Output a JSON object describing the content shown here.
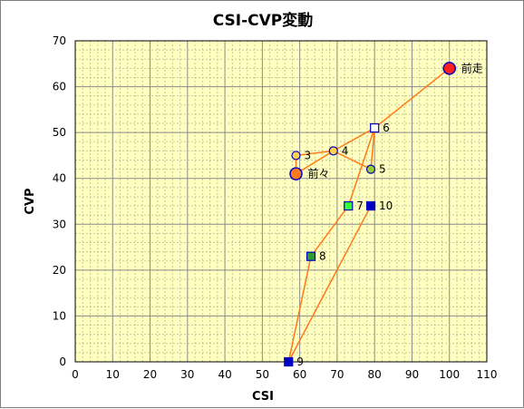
{
  "chart_data": {
    "type": "scatter",
    "title": "CSI-CVP変動",
    "xlabel": "CSI",
    "ylabel": "CVP",
    "xlim": [
      0,
      110
    ],
    "ylim": [
      0,
      70
    ],
    "xticks": [
      "0",
      "10",
      "20",
      "30",
      "40",
      "50",
      "60",
      "70",
      "80",
      "90",
      "100",
      "110"
    ],
    "yticks": [
      "0",
      "10",
      "20",
      "30",
      "40",
      "50",
      "60",
      "70"
    ],
    "grid": true,
    "background_color": "#ffffc0",
    "line_color": "#ff7a1a",
    "points": [
      {
        "label": "前走",
        "x": 100,
        "y": 64,
        "shape": "circle",
        "fill": "#ff2020",
        "stroke": "#0000c0",
        "size": "large"
      },
      {
        "label": "前々",
        "x": 59,
        "y": 41,
        "shape": "circle",
        "fill": "#ff7a1a",
        "stroke": "#0000c0",
        "size": "large"
      },
      {
        "label": "3",
        "x": 59,
        "y": 45,
        "shape": "circle",
        "fill": "#ffd24d",
        "stroke": "#0000c0",
        "size": "small"
      },
      {
        "label": "4",
        "x": 69,
        "y": 46,
        "shape": "circle",
        "fill": "#ffd24d",
        "stroke": "#0000c0",
        "size": "small"
      },
      {
        "label": "5",
        "x": 79,
        "y": 42,
        "shape": "circle",
        "fill": "#99cc33",
        "stroke": "#0000c0",
        "size": "small"
      },
      {
        "label": "6",
        "x": 80,
        "y": 51,
        "shape": "square",
        "fill": "#ffffff",
        "stroke": "#0000c0",
        "size": "small"
      },
      {
        "label": "7",
        "x": 73,
        "y": 34,
        "shape": "square",
        "fill": "#33ff33",
        "stroke": "#0000c0",
        "size": "small"
      },
      {
        "label": "8",
        "x": 63,
        "y": 23,
        "shape": "square",
        "fill": "#339933",
        "stroke": "#0000c0",
        "size": "small"
      },
      {
        "label": "9",
        "x": 57,
        "y": 0,
        "shape": "square",
        "fill": "#0000c0",
        "stroke": "#0000c0",
        "size": "small"
      },
      {
        "label": "10",
        "x": 79,
        "y": 34,
        "shape": "square",
        "fill": "#0000c0",
        "stroke": "#0000c0",
        "size": "small"
      }
    ],
    "path_order": [
      "前走",
      "6",
      "4",
      "前々",
      "3",
      "4",
      "5",
      "6",
      "7",
      "8",
      "9",
      "10"
    ]
  }
}
